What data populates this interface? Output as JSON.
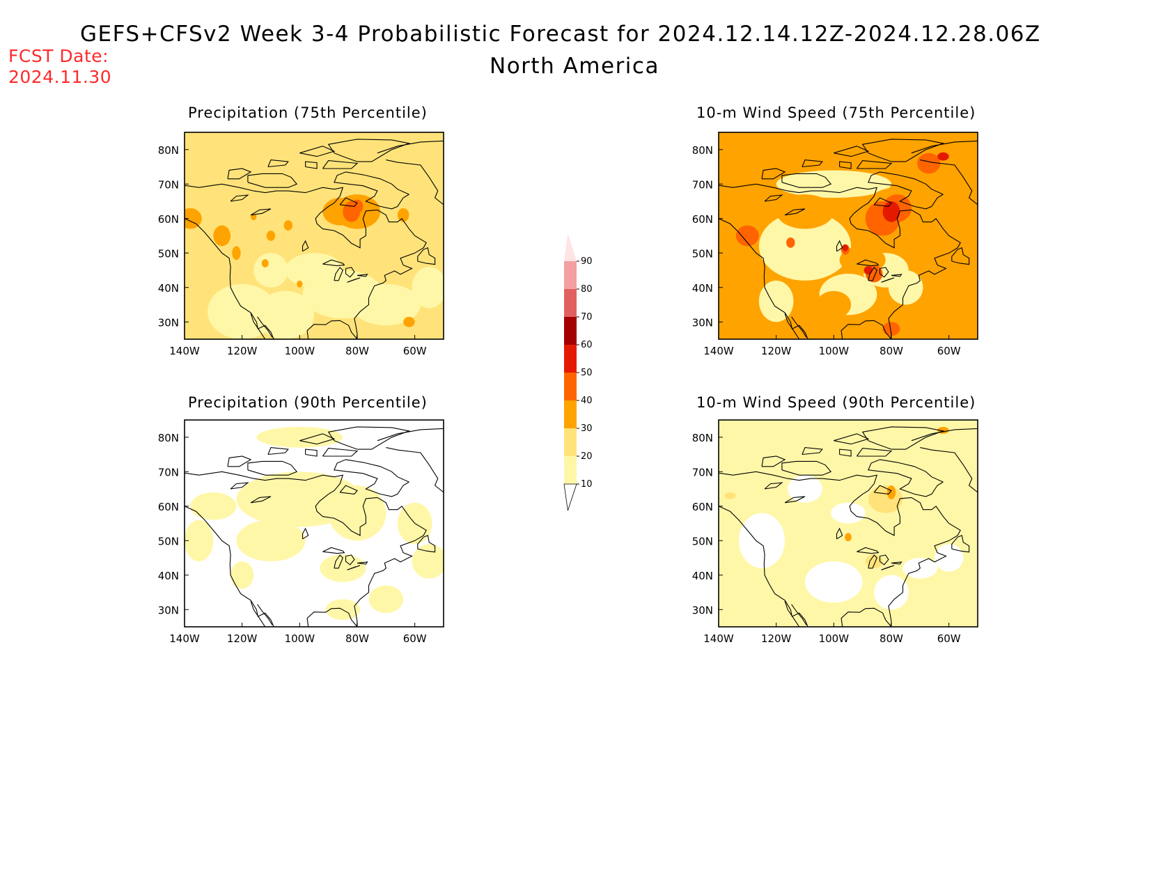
{
  "header": {
    "title": "GEFS+CFSv2 Week 3-4 Probabilistic Forecast for 2024.12.14.12Z-2024.12.28.06Z",
    "subtitle": "North America",
    "fcst_label": "FCST Date:",
    "fcst_date": "2024.11.30"
  },
  "axes": {
    "lon_ticks": [
      "140W",
      "120W",
      "100W",
      "80W",
      "60W"
    ],
    "lat_ticks": [
      "30N",
      "40N",
      "50N",
      "60N",
      "70N",
      "80N"
    ],
    "lon_values": [
      -140,
      -120,
      -100,
      -80,
      -60
    ],
    "lat_values": [
      30,
      40,
      50,
      60,
      70,
      80
    ],
    "lon_range": [
      -140,
      -50
    ],
    "lat_range": [
      25,
      85
    ]
  },
  "colorbar": {
    "levels": [
      "10",
      "20",
      "30",
      "40",
      "50",
      "60",
      "70",
      "80",
      "90"
    ],
    "colors": [
      "#fff7a8",
      "#ffe37a",
      "#ffa300",
      "#ff6400",
      "#e41a00",
      "#a50000",
      "#e06060",
      "#f4a0a0",
      "#ffe4e4"
    ]
  },
  "panels": [
    {
      "id": "precip75",
      "title": "Precipitation (75th Percentile)",
      "background": "#ffe37a",
      "intensity": "moderate"
    },
    {
      "id": "wind75",
      "title": "10-m Wind Speed (75th Percentile)",
      "background": "#ffa300",
      "intensity": "high"
    },
    {
      "id": "precip90",
      "title": "Precipitation (90th Percentile)",
      "background": "#ffffff",
      "intensity": "low"
    },
    {
      "id": "wind90",
      "title": "10-m Wind Speed (90th Percentile)",
      "background": "#fff7a8",
      "intensity": "low"
    }
  ]
}
